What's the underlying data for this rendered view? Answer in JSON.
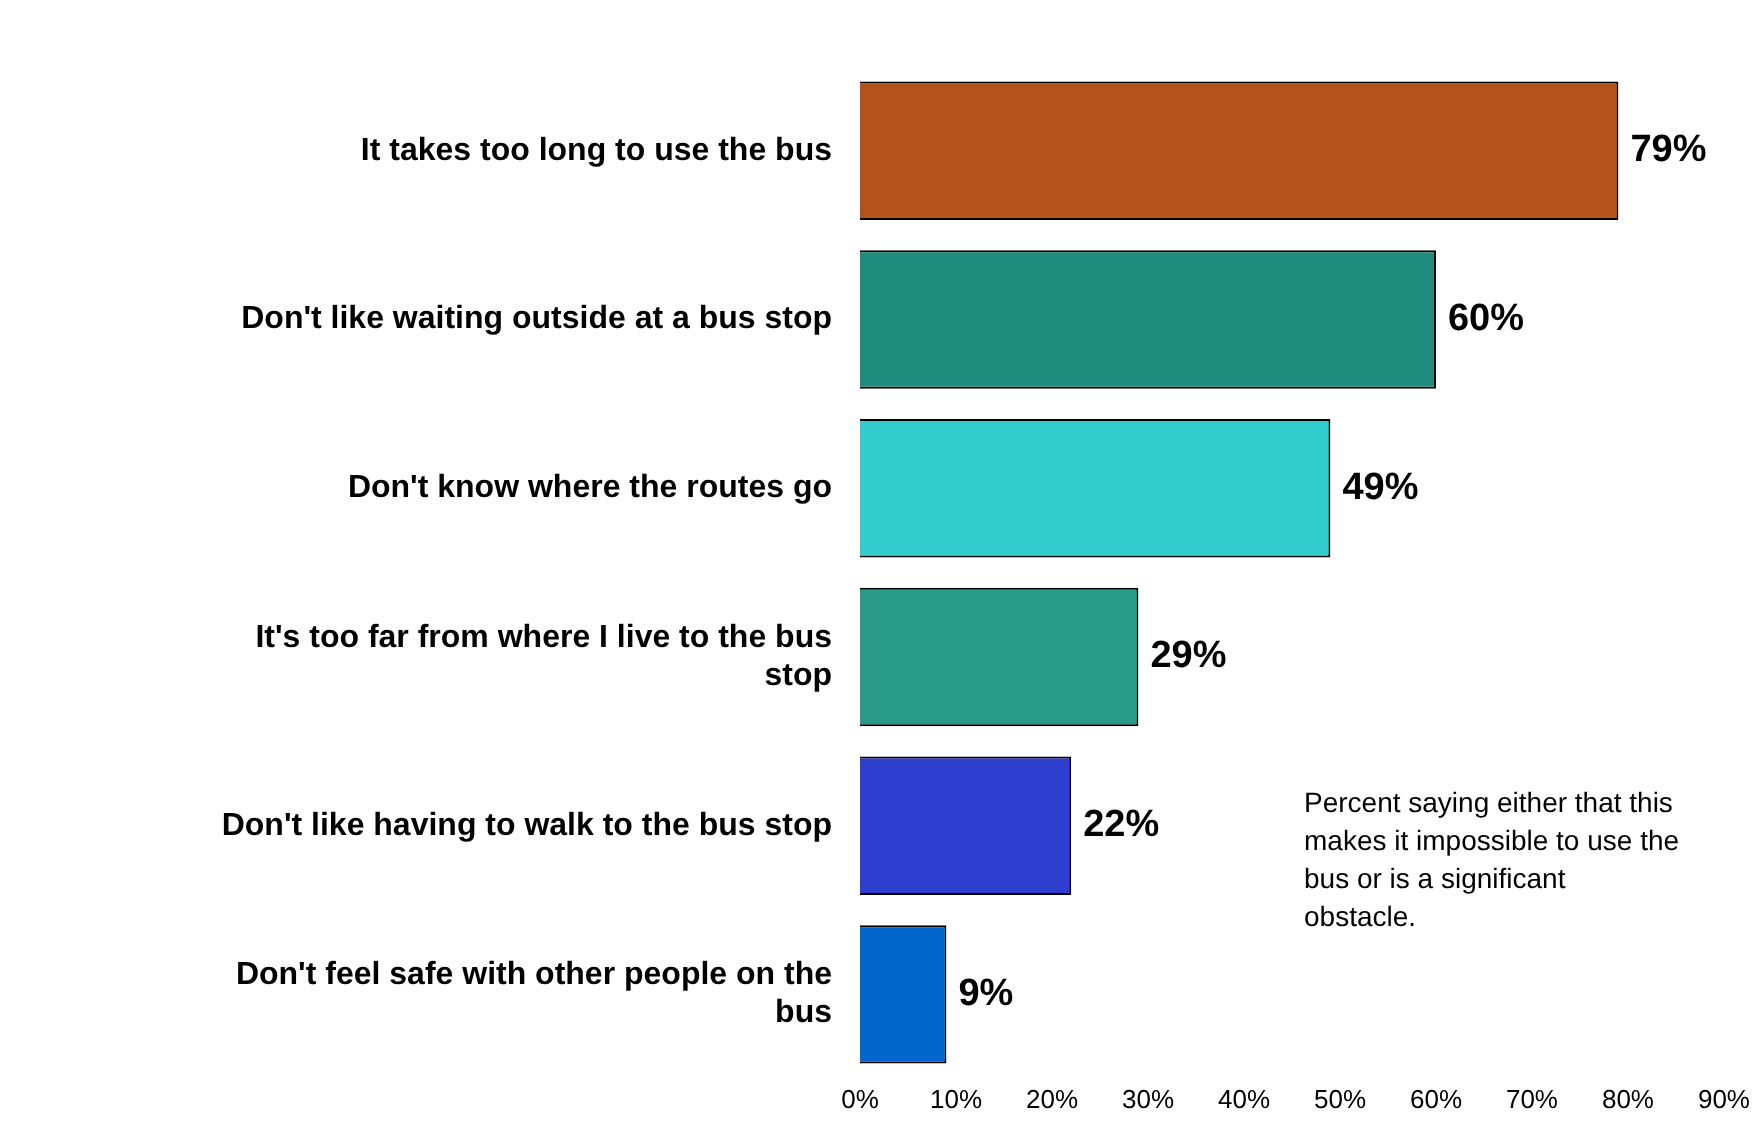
{
  "chart_data": {
    "type": "bar",
    "orientation": "horizontal",
    "categories": [
      "It takes too long to use the bus",
      "Don't like waiting outside at a bus stop",
      "Don't know where the routes go",
      "It's too far from where I live to the bus stop",
      "Don't like having to walk to the bus stop",
      "Don't feel safe with other people on the bus"
    ],
    "values": [
      79,
      60,
      49,
      29,
      22,
      9
    ],
    "colors": [
      "#b5521c",
      "#1f8c7c",
      "#33cccc",
      "#2a9a88",
      "#2e3fd0",
      "#0066cc"
    ],
    "value_labels": [
      "79%",
      "60%",
      "49%",
      "29%",
      "22%",
      "9%"
    ],
    "xlim": [
      0,
      90
    ],
    "xticks": [
      {
        "value": 0,
        "label": "0%"
      },
      {
        "value": 10,
        "label": "10%"
      },
      {
        "value": 20,
        "label": "20%"
      },
      {
        "value": 30,
        "label": "30%"
      },
      {
        "value": 40,
        "label": "40%"
      },
      {
        "value": 50,
        "label": "50%"
      },
      {
        "value": 60,
        "label": "60%"
      },
      {
        "value": 70,
        "label": "70%"
      },
      {
        "value": 80,
        "label": "80%"
      },
      {
        "value": 90,
        "label": "90%"
      }
    ],
    "grid": false,
    "legend": false,
    "annotations": [
      "Percent saying either that this makes it impossible to use the bus or is a significant obstacle."
    ]
  }
}
